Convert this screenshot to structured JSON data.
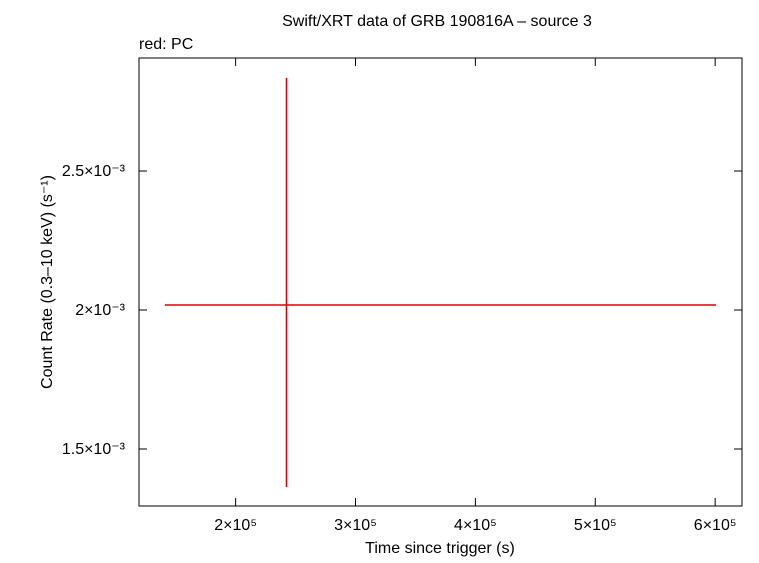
{
  "chart_data": {
    "type": "errorbar",
    "title": "Swift/XRT data of GRB 190816A – source 3",
    "subtitle": "red: PC",
    "x_label": "Time since trigger (s)",
    "y_label": "Count Rate (0.3–10 keV) (s⁻¹)",
    "x": [
      242400
    ],
    "values": [
      0.002018
    ],
    "xerr_minus": [
      101400
    ],
    "xerr_plus": [
      358400
    ],
    "yerr_minus": [
      0.000655
    ],
    "yerr_plus": [
      0.000817
    ],
    "color": "#e00000",
    "xlim": [
      119400,
      622400
    ],
    "ylim": [
      0.001295,
      0.0029065
    ],
    "xticks": [
      {
        "value": 200000,
        "label": "2×10⁵"
      },
      {
        "value": 300000,
        "label": "3×10⁵"
      },
      {
        "value": 400000,
        "label": "4×10⁵"
      },
      {
        "value": 500000,
        "label": "5×10⁵"
      },
      {
        "value": 600000,
        "label": "6×10⁵"
      }
    ],
    "yticks": [
      {
        "value": 0.0015,
        "label": "1.5×10⁻³"
      },
      {
        "value": 0.002,
        "label": "2×10⁻³"
      },
      {
        "value": 0.0025,
        "label": "2.5×10⁻³"
      }
    ]
  }
}
